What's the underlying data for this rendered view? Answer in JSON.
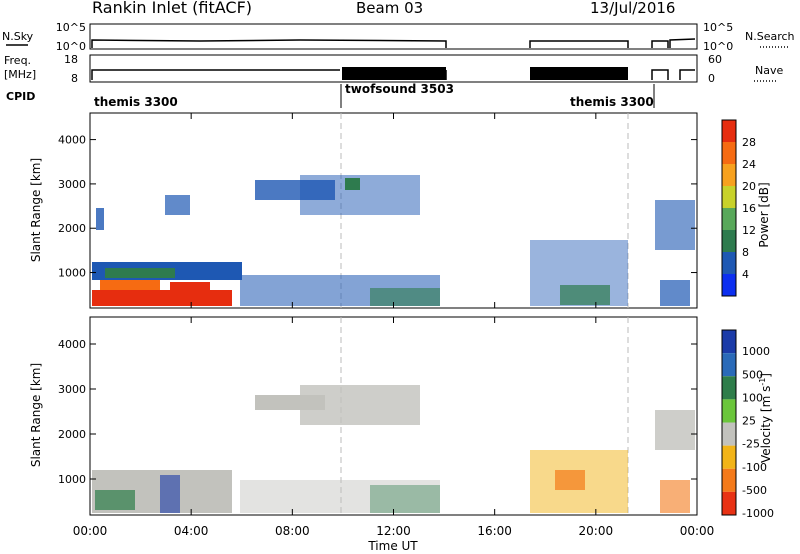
{
  "header": {
    "station": "Rankin Inlet (fitACF)",
    "beam": "Beam 03",
    "date": "13/Jul/2016"
  },
  "panels": {
    "nsky": {
      "label": "N.Sky",
      "ticks": [
        "10^5",
        "10^0"
      ],
      "right_label": "N.Search",
      "right_ticks": [
        "10^5",
        "10^0"
      ]
    },
    "freq": {
      "label_line1": "Freq.",
      "label_line2": "[MHz]",
      "ticks": [
        "18",
        "8"
      ],
      "right_ticks": [
        "60",
        "0"
      ],
      "right_label": "Nave"
    },
    "cpid": {
      "label": "CPID",
      "segments": [
        "themis 3300",
        "twofsound 3503",
        "themis 3300"
      ]
    }
  },
  "chart_data": [
    {
      "type": "heatmap",
      "name": "power",
      "ylabel": "Slant Range [km]",
      "yticks": [
        "1000",
        "2000",
        "3000",
        "4000"
      ],
      "ylim": [
        200,
        4600
      ],
      "colorbar": {
        "label": "Power [dB]",
        "ticks": [
          "4",
          "8",
          "12",
          "16",
          "20",
          "24",
          "28"
        ],
        "colors": [
          "#0c2ff0",
          "#1e58b3",
          "#2e7b4e",
          "#58a85a",
          "#c8d22a",
          "#f7a11e",
          "#f66b12",
          "#e62d0f"
        ]
      }
    },
    {
      "type": "heatmap",
      "name": "velocity",
      "ylabel": "Slant Range [km]",
      "yticks": [
        "1000",
        "2000",
        "3000",
        "4000"
      ],
      "ylim": [
        200,
        4600
      ],
      "xlabel": "Time UT",
      "xticks": [
        "00:00",
        "04:00",
        "08:00",
        "12:00",
        "16:00",
        "20:00",
        "00:00"
      ],
      "colorbar": {
        "label_main": "Velocity  [m s",
        "label_sup": "-1",
        "label_end": "]",
        "ticks": [
          "1000",
          "500",
          "100",
          "25",
          "-25",
          "-100",
          "-500",
          "-1000"
        ],
        "colors": [
          "#1b3ba8",
          "#2a6ab8",
          "#2e7d4a",
          "#6bc63b",
          "#c2c2bd",
          "#f2b418",
          "#f47a1a",
          "#e83214"
        ]
      }
    }
  ]
}
